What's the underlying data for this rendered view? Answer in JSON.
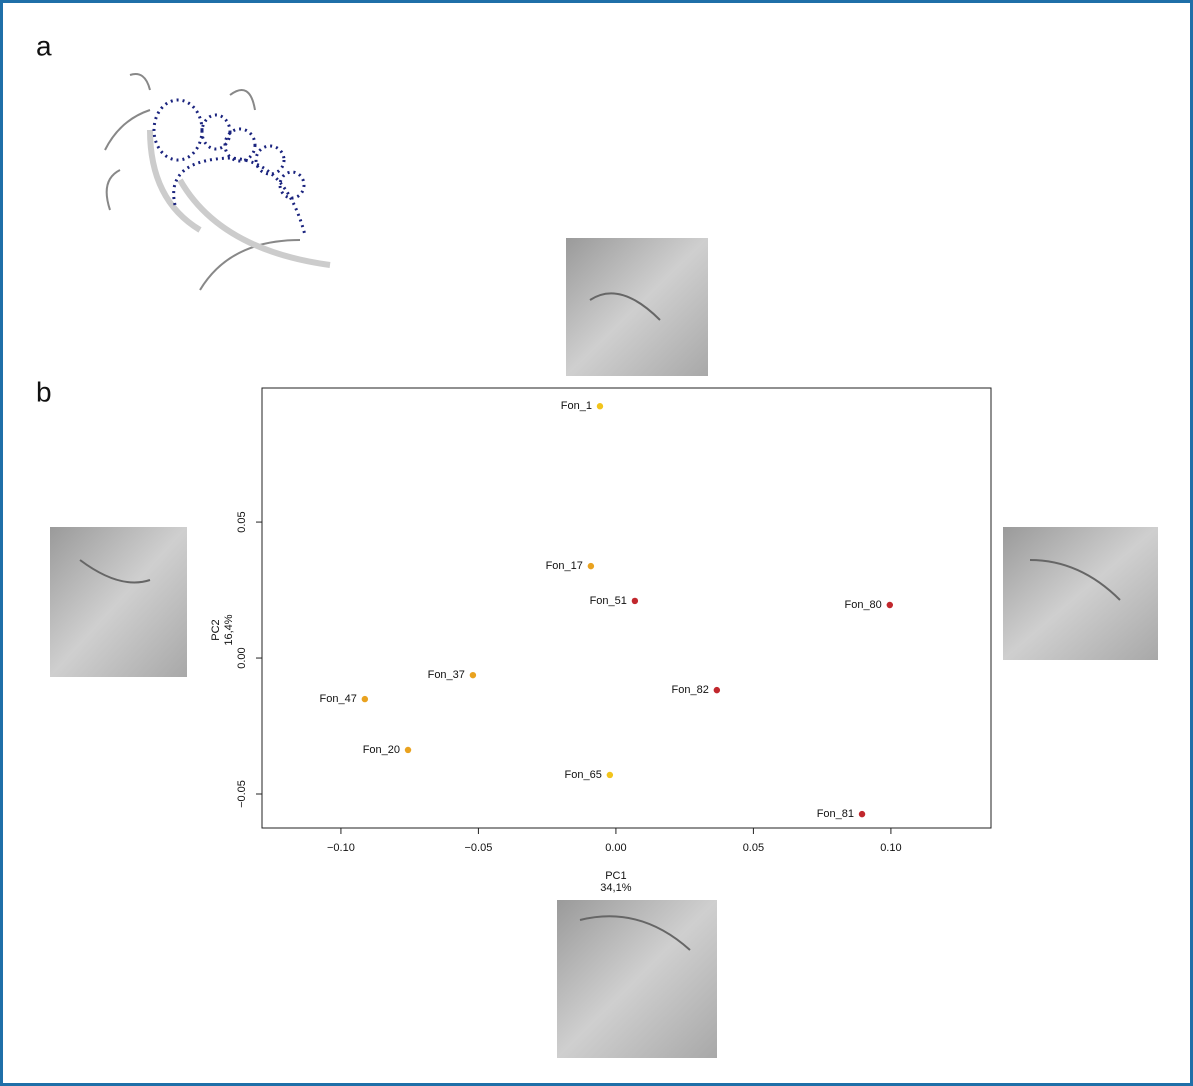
{
  "panel_a": "a",
  "panel_b": "b",
  "chart_data": {
    "type": "scatter",
    "xlabel": "PC1",
    "xlabel_sub": "34,1%",
    "ylabel": "PC2",
    "ylabel_sub": "16,4%",
    "labels": [
      "Fon_1",
      "Fon_17",
      "Fon_51",
      "Fon_80",
      "Fon_37",
      "Fon_82",
      "Fon_47",
      "Fon_20",
      "Fon_65",
      "Fon_81"
    ],
    "x": [
      -0.0058,
      -0.0091,
      0.0069,
      0.0996,
      -0.052,
      0.0367,
      -0.0913,
      -0.0756,
      -0.0022,
      0.0895
    ],
    "y": [
      0.0926,
      0.0338,
      0.021,
      0.0195,
      -0.0063,
      -0.0118,
      -0.0151,
      -0.0338,
      -0.043,
      -0.0574
    ],
    "colors": [
      "#f2c41c",
      "#e9a21f",
      "#c1272d",
      "#c1272d",
      "#e9a21f",
      "#c1272d",
      "#e9a21f",
      "#e9a21f",
      "#f2c41c",
      "#c1272d"
    ],
    "xlim": [
      -0.1287,
      0.1364
    ],
    "ylim": [
      -0.0625,
      0.0993
    ],
    "xticks": [
      {
        "value": -0.1,
        "label": "−0.10"
      },
      {
        "value": -0.05,
        "label": "−0.05"
      },
      {
        "value": 0,
        "label": "0.00"
      },
      {
        "value": 0.05,
        "label": "0.05"
      },
      {
        "value": 0.1,
        "label": "0.10"
      }
    ],
    "yticks": [
      {
        "value": -0.05,
        "label": "−0.05"
      },
      {
        "value": 0,
        "label": "0.00"
      },
      {
        "value": 0.05,
        "label": "0.05"
      }
    ]
  }
}
